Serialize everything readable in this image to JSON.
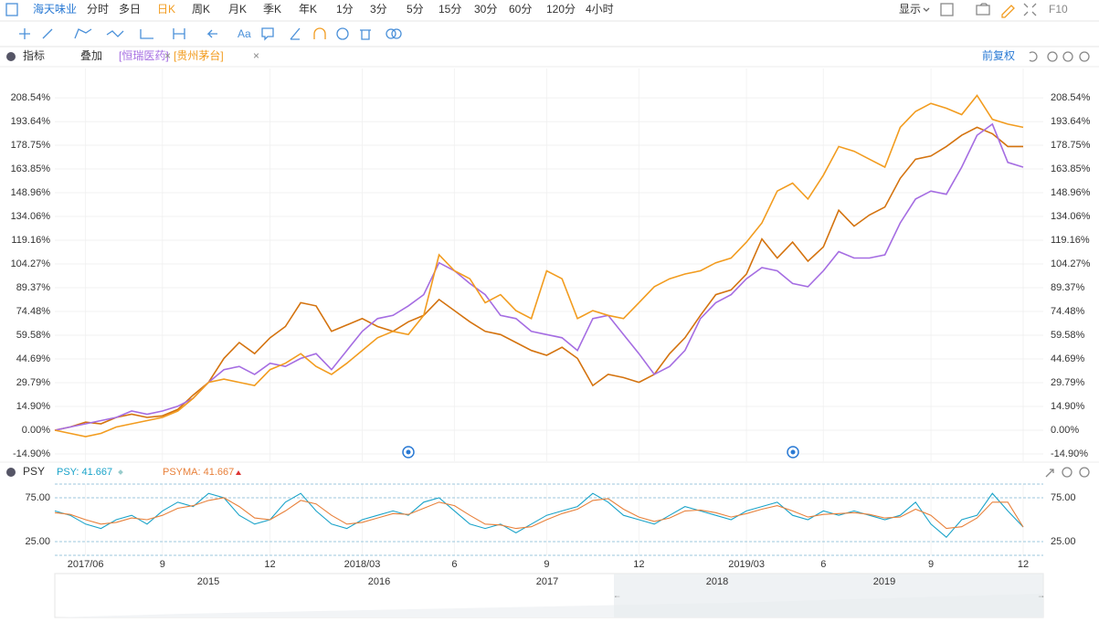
{
  "toolbar": {
    "symbol": "海天味业",
    "periods": [
      "分时",
      "多日",
      "日K",
      "周K",
      "月K",
      "季K",
      "年K",
      "1分",
      "3分",
      "5分",
      "15分",
      "30分",
      "60分",
      "120分",
      "4小时"
    ],
    "active_period": "日K",
    "display": "显示",
    "f10": "F10"
  },
  "drawing_tools": {
    "text_tool": "Aa"
  },
  "indicator_bar": {
    "indicators": "指标",
    "overlay": "叠加",
    "adjust": "前复权"
  },
  "chart_data": [
    {
      "type": "line",
      "categories": [
        null,
        null,
        "2017/06",
        null,
        null,
        null,
        null,
        "9",
        null,
        null,
        null,
        null,
        null,
        null,
        "12",
        null,
        null,
        null,
        null,
        null,
        "2018/03",
        null,
        null,
        null,
        null,
        null,
        "6",
        null,
        null,
        null,
        null,
        null,
        "9",
        null,
        null,
        null,
        null,
        null,
        "12",
        null,
        null,
        null,
        null,
        null,
        null,
        "2019/03",
        null,
        null,
        null,
        null,
        "6",
        null,
        null,
        null,
        null,
        null,
        null,
        "9",
        null,
        null,
        null,
        null,
        null,
        "12"
      ],
      "series": [
        {
          "color": "#d4730f",
          "values": [
            0,
            2,
            5,
            4,
            8,
            10,
            8,
            9,
            13,
            22,
            30,
            45,
            55,
            48,
            58,
            65,
            80,
            78,
            62,
            66,
            70,
            65,
            62,
            68,
            72,
            82,
            75,
            68,
            62,
            60,
            55,
            50,
            47,
            52,
            45,
            28,
            35,
            33,
            30,
            35,
            48,
            58,
            72,
            85,
            88,
            98,
            120,
            108,
            118,
            106,
            115,
            138,
            128,
            135,
            140,
            158,
            170,
            172,
            178,
            185,
            190,
            186,
            178,
            178
          ]
        },
        {
          "name": "[恒瑞医药]",
          "color": "#a56de2",
          "values": [
            0,
            2,
            4,
            6,
            8,
            12,
            10,
            12,
            15,
            20,
            30,
            38,
            40,
            35,
            42,
            40,
            45,
            48,
            38,
            50,
            62,
            70,
            72,
            78,
            85,
            105,
            100,
            92,
            85,
            72,
            70,
            62,
            60,
            58,
            50,
            70,
            72,
            60,
            48,
            35,
            40,
            50,
            70,
            80,
            85,
            95,
            102,
            100,
            92,
            90,
            100,
            112,
            108,
            108,
            110,
            130,
            145,
            150,
            148,
            165,
            185,
            192,
            168,
            165
          ]
        },
        {
          "name": "[贵州茅台]",
          "color": "#f29c1f",
          "values": [
            0,
            -2,
            -4,
            -2,
            2,
            4,
            6,
            8,
            12,
            20,
            30,
            32,
            30,
            28,
            38,
            42,
            48,
            40,
            35,
            42,
            50,
            58,
            62,
            60,
            72,
            110,
            100,
            95,
            80,
            85,
            75,
            70,
            100,
            95,
            70,
            75,
            72,
            70,
            80,
            90,
            95,
            98,
            100,
            105,
            108,
            118,
            130,
            150,
            155,
            145,
            160,
            178,
            175,
            170,
            165,
            190,
            200,
            205,
            202,
            198,
            210,
            195,
            192,
            190
          ]
        }
      ],
      "ylim": [
        -19.5,
        225.2
      ],
      "yticks": [
        {
          "value": -14.9,
          "label": "-14.90%"
        },
        {
          "value": 0,
          "label": "0.00%"
        },
        {
          "value": 14.9,
          "label": "14.90%"
        },
        {
          "value": 29.79,
          "label": "29.79%"
        },
        {
          "value": 44.69,
          "label": "44.69%"
        },
        {
          "value": 59.58,
          "label": "59.58%"
        },
        {
          "value": 74.48,
          "label": "74.48%"
        },
        {
          "value": 89.37,
          "label": "89.37%"
        },
        {
          "value": 104.27,
          "label": "104.27%"
        },
        {
          "value": 119.16,
          "label": "119.16%"
        },
        {
          "value": 134.06,
          "label": "134.06%"
        },
        {
          "value": 148.96,
          "label": "148.96%"
        },
        {
          "value": 163.85,
          "label": "163.85%"
        },
        {
          "value": 178.75,
          "label": "178.75%"
        },
        {
          "value": 193.64,
          "label": "193.64%"
        },
        {
          "value": 208.54,
          "label": "208.54%"
        }
      ],
      "grid": true
    },
    {
      "type": "line",
      "title": "PSY",
      "legend_labels": [
        "PSY: 41.667",
        "PSYMA: 41.667"
      ],
      "series": [
        {
          "name": "PSY",
          "color": "#1aa3c9",
          "values": [
            60,
            55,
            45,
            40,
            50,
            55,
            45,
            60,
            70,
            65,
            80,
            75,
            55,
            45,
            50,
            70,
            80,
            60,
            45,
            40,
            50,
            55,
            60,
            55,
            70,
            75,
            60,
            45,
            40,
            45,
            35,
            45,
            55,
            60,
            65,
            80,
            70,
            55,
            50,
            45,
            55,
            65,
            60,
            55,
            50,
            60,
            65,
            70,
            55,
            50,
            60,
            55,
            60,
            55,
            50,
            55,
            70,
            45,
            30,
            50,
            55,
            80,
            60,
            41.667
          ]
        },
        {
          "name": "PSYMA",
          "color": "#e8803a",
          "values": [
            58,
            56,
            50,
            45,
            47,
            52,
            50,
            55,
            63,
            66,
            72,
            75,
            65,
            52,
            50,
            60,
            72,
            68,
            55,
            45,
            47,
            52,
            57,
            56,
            63,
            70,
            66,
            55,
            45,
            44,
            40,
            42,
            50,
            57,
            62,
            72,
            74,
            62,
            53,
            48,
            52,
            60,
            61,
            58,
            53,
            57,
            62,
            66,
            60,
            53,
            56,
            57,
            58,
            56,
            52,
            53,
            62,
            55,
            40,
            42,
            52,
            70,
            70,
            41.667
          ]
        }
      ],
      "ylim": [
        9.4,
        90.6
      ],
      "yticks": [
        {
          "value": 25,
          "label": "25.00"
        },
        {
          "value": 75,
          "label": "75.00"
        }
      ]
    }
  ],
  "navigator": {
    "years": [
      "2015",
      "2016",
      "2017",
      "2018",
      "2019"
    ]
  }
}
